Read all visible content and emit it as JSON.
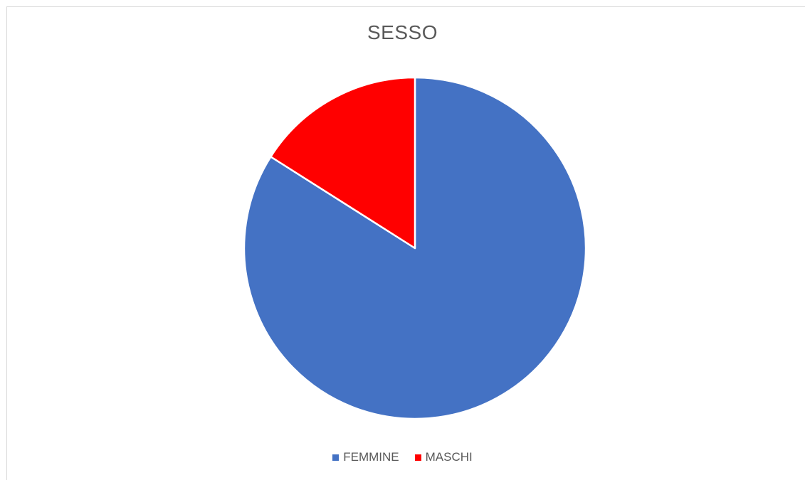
{
  "chart_data": {
    "type": "pie",
    "title": "SESSO",
    "categories": [
      "FEMMINE",
      "MASCHI"
    ],
    "values": [
      84,
      16
    ],
    "colors": [
      "#4472C4",
      "#FF0000"
    ],
    "start_angle": "12 o'clock",
    "direction": "clockwise",
    "legend": "bottom"
  }
}
